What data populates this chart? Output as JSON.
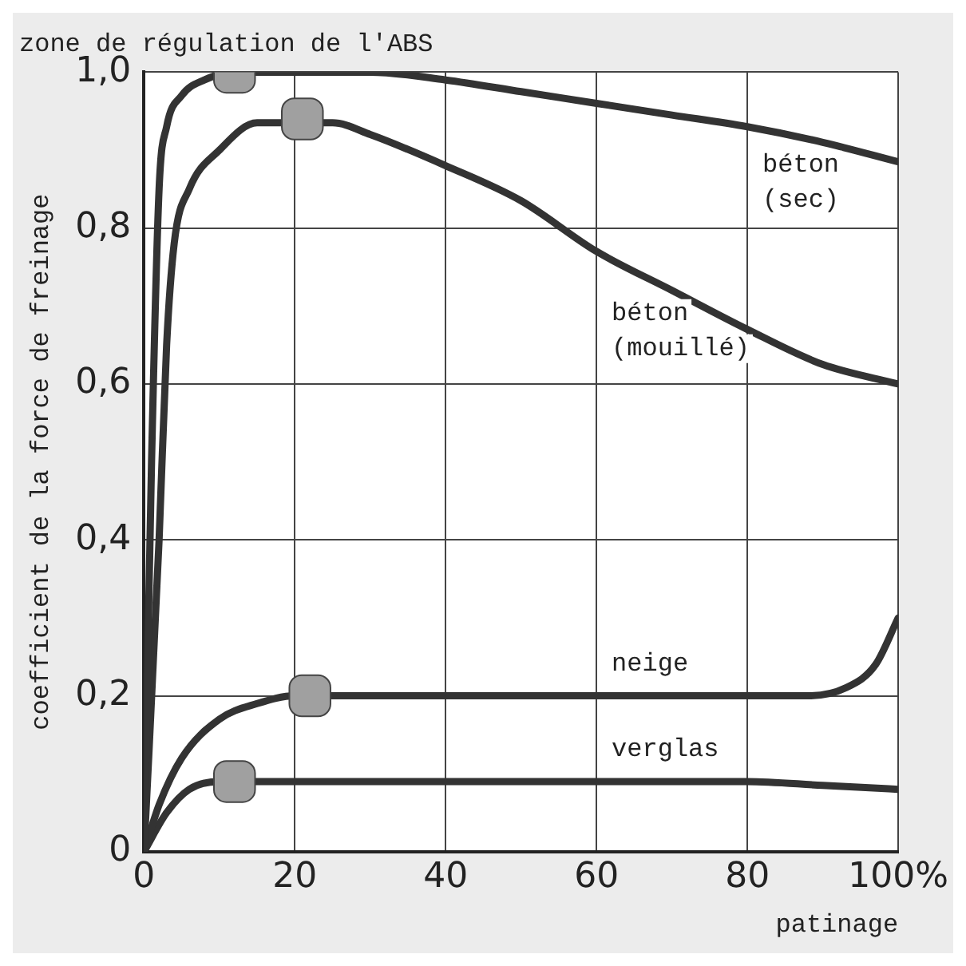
{
  "chart_data": {
    "type": "line",
    "title": "zone de régulation de l'ABS",
    "xlabel": "patinage",
    "ylabel": "coefficient de la force de freinage",
    "xlim": [
      0,
      100
    ],
    "xticks": [
      0,
      20,
      40,
      60,
      80,
      {
        "value": 100,
        "label": "100%"
      }
    ],
    "ylim": [
      0,
      1
    ],
    "yticks": [
      0,
      {
        "value": 0.2,
        "label": "0,2"
      },
      {
        "value": 0.4,
        "label": "0,4"
      },
      {
        "value": 0.6,
        "label": "0,6"
      },
      {
        "value": 0.8,
        "label": "0,8"
      },
      {
        "value": 1,
        "label": "1,0"
      }
    ],
    "grid": true,
    "legend": false,
    "line_style": "solid",
    "marker": "none",
    "series": [
      {
        "name": "béton (sec)",
        "color": "#333333",
        "x": [
          0,
          1,
          2,
          3,
          5,
          8,
          12,
          30,
          40,
          50,
          60,
          70,
          80,
          90,
          100
        ],
        "values": [
          0,
          0.5,
          0.85,
          0.93,
          0.97,
          0.99,
          1.0,
          1.0,
          0.99,
          0.975,
          0.96,
          0.945,
          0.93,
          0.91,
          0.885
        ]
      },
      {
        "name": "béton (mouillé)",
        "color": "#333333",
        "x": [
          0,
          2,
          3,
          4,
          6,
          10,
          15,
          25,
          30,
          40,
          50,
          60,
          70,
          80,
          90,
          100
        ],
        "values": [
          0,
          0.4,
          0.65,
          0.78,
          0.85,
          0.9,
          0.935,
          0.935,
          0.92,
          0.88,
          0.835,
          0.77,
          0.72,
          0.67,
          0.625,
          0.6
        ]
      },
      {
        "name": "neige",
        "color": "#333333",
        "x": [
          0,
          2,
          5,
          10,
          15,
          20,
          50,
          80,
          88,
          93,
          97,
          100
        ],
        "values": [
          0,
          0.06,
          0.12,
          0.17,
          0.19,
          0.2,
          0.2,
          0.2,
          0.2,
          0.21,
          0.24,
          0.3
        ]
      },
      {
        "name": "verglas",
        "color": "#333333",
        "x": [
          0,
          3,
          6,
          10,
          20,
          60,
          80,
          90,
          100
        ],
        "values": [
          0,
          0.05,
          0.08,
          0.09,
          0.09,
          0.09,
          0.09,
          0.085,
          0.08
        ]
      },
      {
        "type": "scatter",
        "color": "#a0a0a0",
        "marker": "square",
        "x": [
          12,
          21,
          22,
          12
        ],
        "values": [
          1.0,
          0.94,
          0.2,
          0.09
        ]
      }
    ]
  }
}
